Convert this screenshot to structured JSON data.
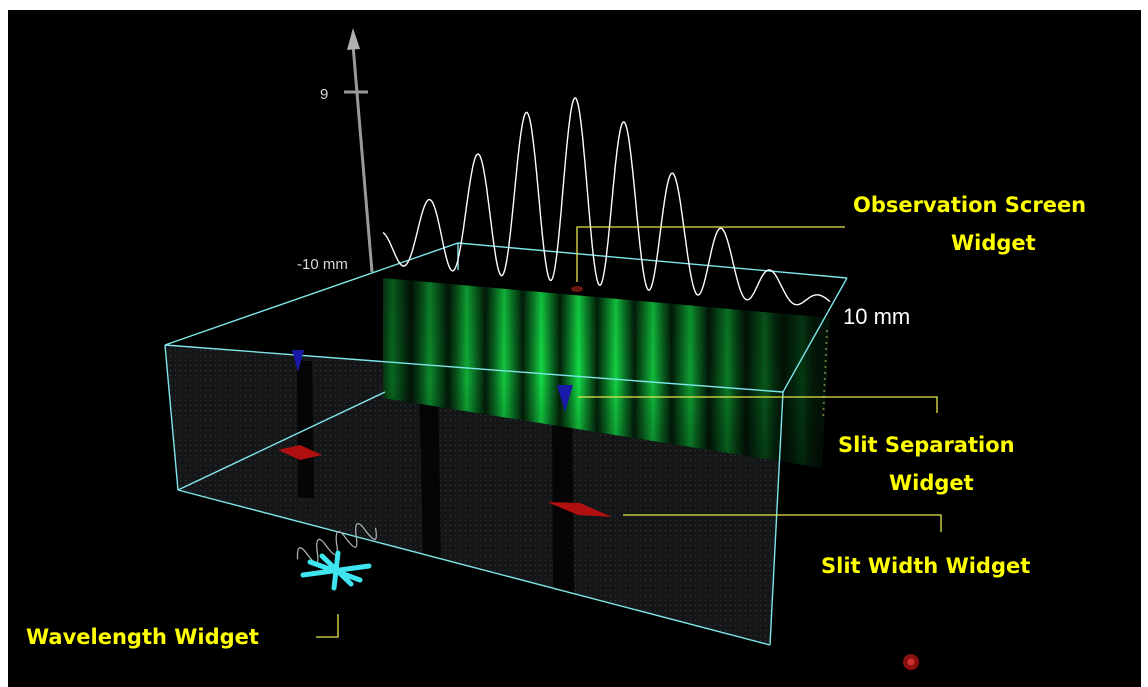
{
  "axis": {
    "tick_label": "9",
    "left_label": "-10 mm",
    "right_label": "10 mm"
  },
  "labels": {
    "observation_line1": "Observation Screen",
    "observation_line2": "Widget",
    "slit_sep_line1": "Slit Separation",
    "slit_sep_line2": "Widget",
    "slit_width": "Slit Width Widget",
    "wavelength": "Wavelength Widget"
  },
  "colors": {
    "background": "#000000",
    "label": "#ffff00",
    "box_edge": "#7fe6ea",
    "fringe": "#2bd64a",
    "slit_marker": "#1a1aa8",
    "width_marker": "#b01010",
    "wavelength_widget": "#3fe6f0",
    "intensity_curve": "#ffffff"
  },
  "icons": [
    "axis-arrow-icon",
    "slit-separation-cone-icon",
    "slit-width-diamond-icon",
    "wavelength-jack-icon",
    "red-dot-icon"
  ]
}
